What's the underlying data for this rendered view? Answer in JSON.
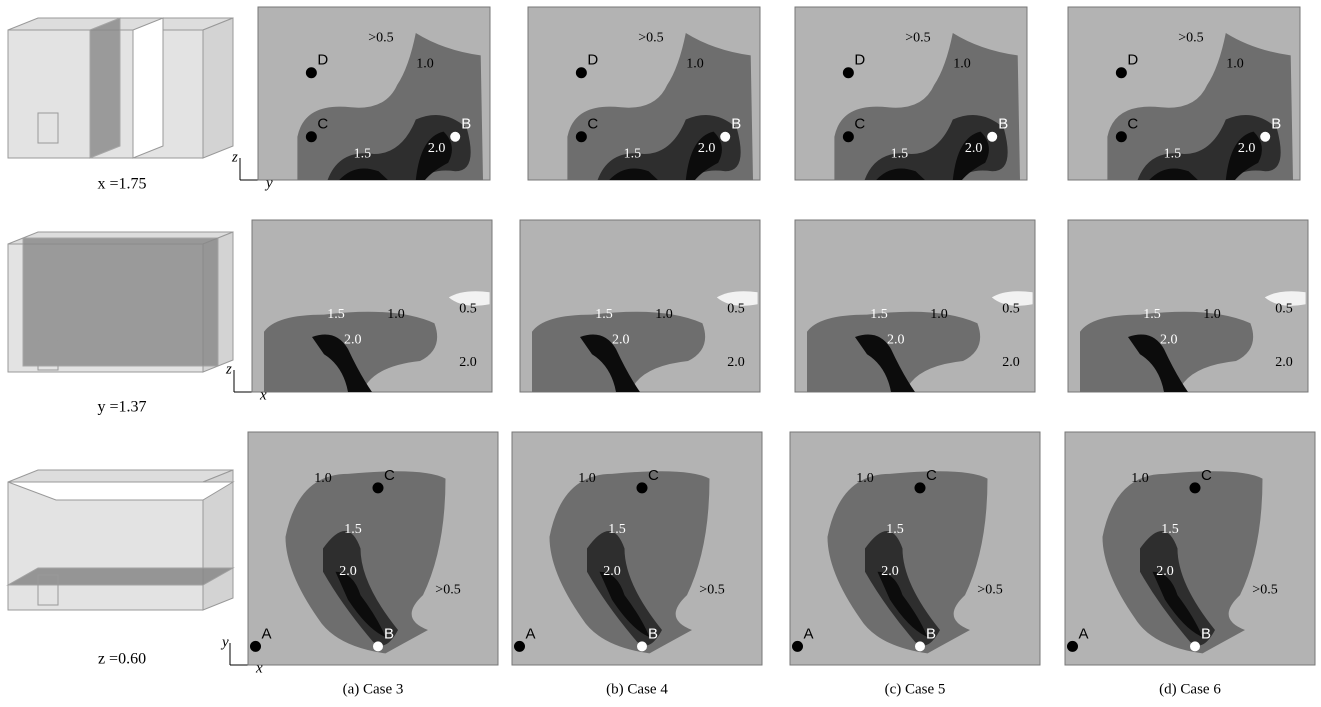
{
  "rows": [
    {
      "slice": "x =1.75",
      "axes": {
        "vertical": "z",
        "horizontal": "y"
      },
      "labels": [
        ">0.5",
        "1.0",
        "1.5",
        "2.0"
      ],
      "points": [
        "D",
        "C",
        "B"
      ]
    },
    {
      "slice": "y =1.37",
      "axes": {
        "vertical": "z",
        "horizontal": "x"
      },
      "labels": [
        "0.5",
        "1.5",
        "1.0",
        "2.0",
        "2.0"
      ],
      "points": []
    },
    {
      "slice": "z =0.60",
      "axes": {
        "vertical": "y",
        "horizontal": "x"
      },
      "labels": [
        "1.0",
        "1.5",
        "2.0",
        ">0.5"
      ],
      "points": [
        "C",
        "A",
        "B"
      ]
    }
  ],
  "captions": [
    "(a) Case 3",
    "(b) Case 4",
    "(c) Case 5",
    "(d) Case 6"
  ]
}
